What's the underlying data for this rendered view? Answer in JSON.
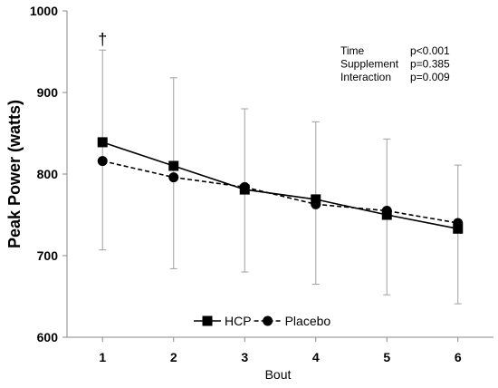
{
  "chart_data": {
    "type": "line",
    "x": [
      1,
      2,
      3,
      4,
      5,
      6
    ],
    "xlabel": "Bout",
    "ylabel": "Peak Power (watts)",
    "ylim": [
      600,
      1000
    ],
    "yticks": [
      600,
      700,
      800,
      900,
      1000
    ],
    "grid": false,
    "legend_position": "bottom-center",
    "series": [
      {
        "name": "HCP",
        "marker": "square",
        "line_style": "solid",
        "color": "#000000",
        "values": [
          839,
          810,
          781,
          769,
          750,
          733
        ],
        "error_upper": [
          952,
          918,
          880,
          864,
          843,
          811
        ],
        "error_lower": [
          707,
          684,
          680,
          665,
          652,
          641
        ]
      },
      {
        "name": "Placebo",
        "marker": "circle",
        "line_style": "dashed",
        "color": "#000000",
        "values": [
          816,
          796,
          784,
          763,
          755,
          740
        ]
      }
    ],
    "error_bar_color": "#a0a0a0",
    "annotations": [
      {
        "text": "†",
        "x": 1,
        "y": 965
      }
    ],
    "stats": [
      {
        "label": "Time",
        "value": "p<0.001"
      },
      {
        "label": "Supplement",
        "value": "p=0.385"
      },
      {
        "label": "Interaction",
        "value": "p=0.009"
      }
    ]
  }
}
